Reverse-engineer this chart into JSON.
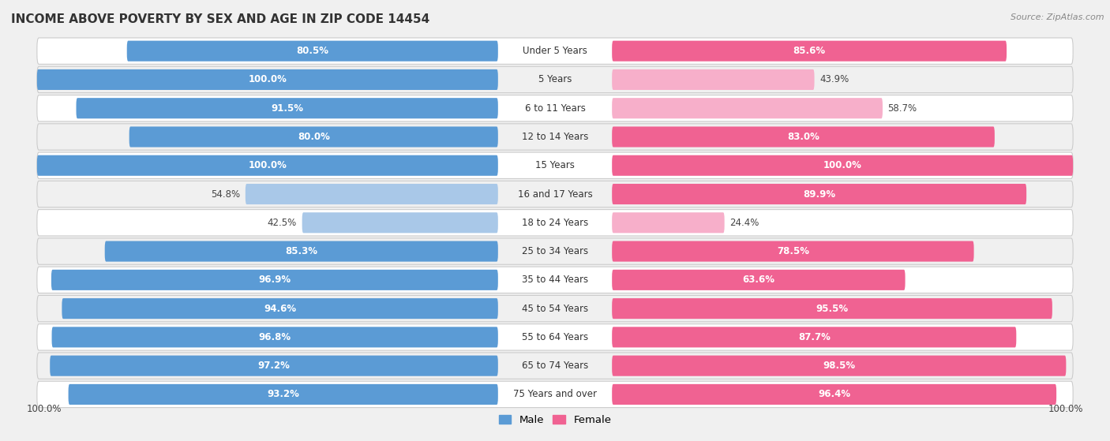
{
  "title": "INCOME ABOVE POVERTY BY SEX AND AGE IN ZIP CODE 14454",
  "source": "Source: ZipAtlas.com",
  "categories": [
    "Under 5 Years",
    "5 Years",
    "6 to 11 Years",
    "12 to 14 Years",
    "15 Years",
    "16 and 17 Years",
    "18 to 24 Years",
    "25 to 34 Years",
    "35 to 44 Years",
    "45 to 54 Years",
    "55 to 64 Years",
    "65 to 74 Years",
    "75 Years and over"
  ],
  "male_values": [
    80.5,
    100.0,
    91.5,
    80.0,
    100.0,
    54.8,
    42.5,
    85.3,
    96.9,
    94.6,
    96.8,
    97.2,
    93.2
  ],
  "female_values": [
    85.6,
    43.9,
    58.7,
    83.0,
    100.0,
    89.9,
    24.4,
    78.5,
    63.6,
    95.5,
    87.7,
    98.5,
    96.4
  ],
  "male_color_high": "#5B9BD5",
  "male_color_low": "#A9C8E8",
  "female_color_high": "#F06292",
  "female_color_low": "#F7AFCA",
  "background_color": "#f0f0f0",
  "row_bg_color": "#f8f8f8",
  "row_border_color": "#dddddd",
  "title_fontsize": 11,
  "label_fontsize": 8.5,
  "value_fontsize": 8.5,
  "legend_male": "Male",
  "legend_female": "Female",
  "footer_value": "100.0%",
  "high_threshold": 60
}
